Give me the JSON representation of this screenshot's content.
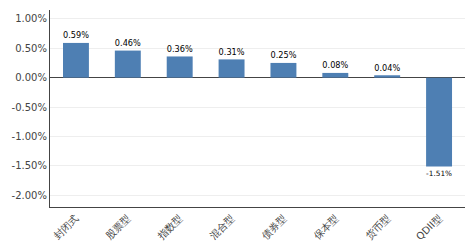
{
  "chart_data": {
    "type": "bar",
    "categories": [
      "封闭式",
      "股票型",
      "指数型",
      "混合型",
      "债券型",
      "保本型",
      "货币型",
      "QDII型"
    ],
    "values": [
      0.0059,
      0.0046,
      0.0036,
      0.0031,
      0.0025,
      0.0008,
      0.0004,
      -0.0151
    ],
    "value_labels": [
      "0.59%",
      "0.46%",
      "0.36%",
      "0.31%",
      "0.25%",
      "0.08%",
      "0.04%",
      "-1.51%"
    ],
    "data_labels": true,
    "color": "#4e7fb3",
    "ylim": [
      -0.022,
      0.0115
    ],
    "yticks": [
      {
        "value": -0.02,
        "label": "-2.00%"
      },
      {
        "value": -0.015,
        "label": "-1.50%"
      },
      {
        "value": -0.01,
        "label": "-1.00%"
      },
      {
        "value": -0.005,
        "label": "-0.50%"
      },
      {
        "value": 0.0,
        "label": "0.00%"
      },
      {
        "value": 0.005,
        "label": "0.50%"
      },
      {
        "value": 0.01,
        "label": "1.00%"
      }
    ],
    "grid": true
  }
}
